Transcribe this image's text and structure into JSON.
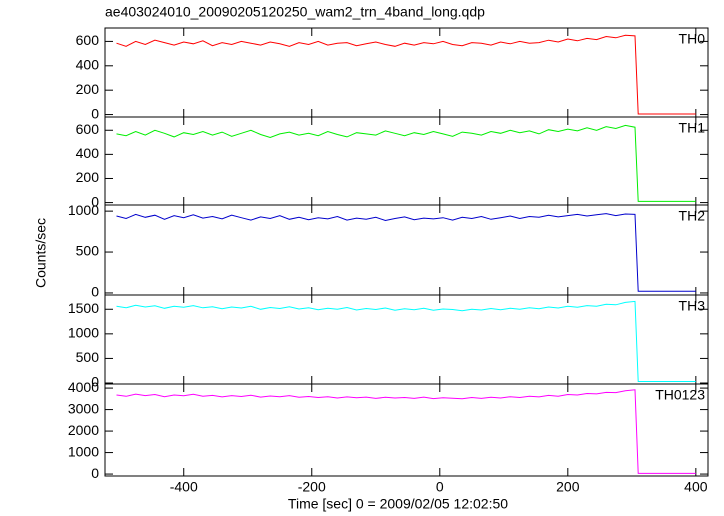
{
  "chart_data": {
    "type": "line",
    "title": "ae403024010_20090205120250_wam2_trn_4band_long.qdp",
    "x_label": "Time [sec] 0 = 2009/02/05 12:02:50",
    "y_label": "Counts/sec",
    "xlim": [
      -523,
      419
    ],
    "xticks": [
      -400,
      -200,
      0,
      200,
      400
    ],
    "x": [
      -505,
      -490,
      -475,
      -460,
      -445,
      -430,
      -415,
      -400,
      -385,
      -370,
      -355,
      -340,
      -325,
      -310,
      -295,
      -280,
      -265,
      -250,
      -235,
      -220,
      -205,
      -190,
      -175,
      -160,
      -145,
      -130,
      -115,
      -100,
      -85,
      -70,
      -55,
      -40,
      -25,
      -10,
      5,
      20,
      35,
      50,
      65,
      80,
      95,
      110,
      125,
      140,
      155,
      170,
      185,
      200,
      215,
      230,
      245,
      260,
      275,
      290,
      305,
      310,
      400
    ],
    "series": [
      {
        "name": "TH0",
        "color": "#ff0000",
        "ylim": [
          -20,
          710
        ],
        "yticks": [
          0,
          200,
          400,
          600
        ],
        "values": [
          585,
          560,
          600,
          575,
          610,
          590,
          570,
          595,
          580,
          605,
          565,
          590,
          575,
          600,
          585,
          570,
          595,
          580,
          560,
          590,
          575,
          600,
          570,
          585,
          590,
          565,
          580,
          595,
          575,
          560,
          585,
          570,
          590,
          580,
          600,
          575,
          565,
          590,
          585,
          570,
          595,
          580,
          600,
          585,
          590,
          610,
          595,
          620,
          605,
          625,
          615,
          640,
          630,
          650,
          645,
          5,
          5
        ]
      },
      {
        "name": "TH1",
        "color": "#00ee00",
        "ylim": [
          -20,
          710
        ],
        "yticks": [
          0,
          200,
          400,
          600
        ],
        "values": [
          570,
          555,
          590,
          560,
          600,
          575,
          545,
          580,
          565,
          590,
          560,
          585,
          550,
          575,
          600,
          565,
          540,
          570,
          585,
          560,
          575,
          555,
          590,
          565,
          545,
          580,
          570,
          560,
          595,
          575,
          555,
          580,
          565,
          590,
          570,
          550,
          585,
          575,
          560,
          590,
          575,
          600,
          580,
          595,
          570,
          605,
          590,
          610,
          595,
          620,
          600,
          630,
          615,
          640,
          625,
          10,
          10
        ]
      },
      {
        "name": "TH2",
        "color": "#0000cc",
        "ylim": [
          -25,
          1075
        ],
        "yticks": [
          0,
          500,
          1000
        ],
        "values": [
          940,
          910,
          960,
          925,
          950,
          900,
          945,
          920,
          955,
          915,
          935,
          905,
          950,
          920,
          890,
          930,
          910,
          945,
          900,
          925,
          895,
          920,
          905,
          935,
          890,
          915,
          900,
          925,
          885,
          910,
          930,
          895,
          915,
          905,
          920,
          890,
          925,
          910,
          935,
          900,
          920,
          940,
          910,
          935,
          925,
          950,
          930,
          945,
          960,
          940,
          955,
          970,
          945,
          965,
          960,
          20,
          20
        ]
      },
      {
        "name": "TH3",
        "color": "#00ffff",
        "ylim": [
          -20,
          1790
        ],
        "yticks": [
          0,
          500,
          1000,
          1500
        ],
        "values": [
          1560,
          1530,
          1580,
          1545,
          1570,
          1520,
          1560,
          1540,
          1575,
          1530,
          1550,
          1510,
          1545,
          1525,
          1560,
          1500,
          1535,
          1515,
          1550,
          1505,
          1530,
          1490,
          1520,
          1500,
          1535,
          1485,
          1515,
          1495,
          1525,
          1480,
          1510,
          1490,
          1520,
          1480,
          1505,
          1495,
          1470,
          1500,
          1485,
          1515,
          1490,
          1520,
          1500,
          1530,
          1510,
          1545,
          1525,
          1560,
          1540,
          1575,
          1560,
          1600,
          1590,
          1640,
          1660,
          30,
          30
        ]
      },
      {
        "name": "TH0123",
        "color": "#ff00ff",
        "ylim": [
          -90,
          4190
        ],
        "yticks": [
          0,
          1000,
          2000,
          3000,
          4000
        ],
        "values": [
          3680,
          3620,
          3720,
          3650,
          3700,
          3600,
          3680,
          3640,
          3710,
          3620,
          3660,
          3590,
          3650,
          3610,
          3670,
          3580,
          3630,
          3600,
          3650,
          3570,
          3610,
          3560,
          3600,
          3540,
          3590,
          3550,
          3580,
          3520,
          3570,
          3540,
          3560,
          3520,
          3580,
          3510,
          3550,
          3530,
          3500,
          3560,
          3520,
          3570,
          3540,
          3600,
          3560,
          3620,
          3590,
          3660,
          3620,
          3700,
          3680,
          3750,
          3730,
          3800,
          3790,
          3880,
          3920,
          30,
          30
        ]
      }
    ]
  }
}
